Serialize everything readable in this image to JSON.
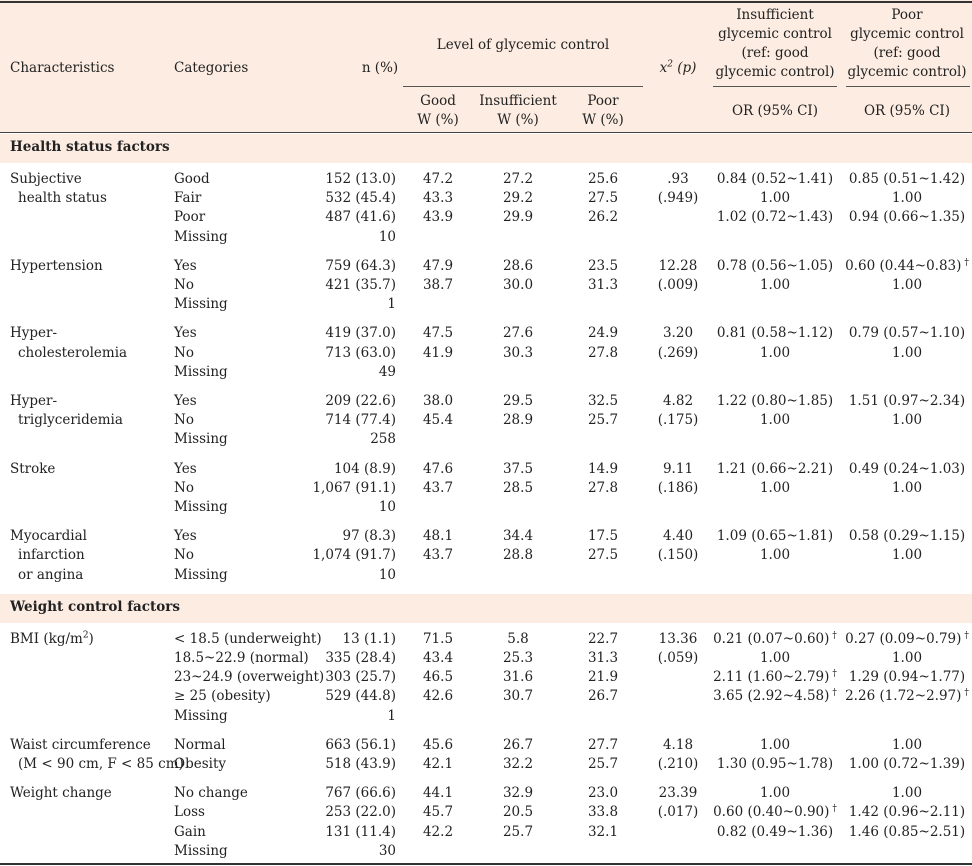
{
  "header": {
    "characteristics": "Characteristics",
    "categories": "Categories",
    "n": "n (%)",
    "level": "Level of glycemic control",
    "chi": "x",
    "chi_sup": "2",
    "chi_p": "(p)",
    "insufficient_title": [
      "Insufficient",
      "glycemic control",
      "(ref: good",
      "glycemic control)"
    ],
    "poor_title": [
      "Poor",
      "glycemic control",
      "(ref: good",
      "glycemic control)"
    ],
    "good_sub": [
      "Good",
      "W (%)"
    ],
    "insuff_sub": [
      "Insufficient",
      "W (%)"
    ],
    "poor_sub": [
      "Poor",
      "W (%)"
    ],
    "or_insuff": "OR (95% CI)",
    "or_poor": "OR (95% CI)"
  },
  "sections": [
    {
      "title": "Health status factors",
      "groups": [
        {
          "label": [
            "Subjective",
            "  health status"
          ],
          "rows": [
            {
              "cat": "Good",
              "n": "152 (13.0)",
              "good": "47.2",
              "insuff": "27.2",
              "poor": "25.6",
              "chi": ".93",
              "or1": "0.84 (0.52~1.41)",
              "or2": "0.85 (0.51~1.42)"
            },
            {
              "cat": "Fair",
              "n": "532 (45.4)",
              "good": "43.3",
              "insuff": "29.2",
              "poor": "27.5",
              "chi": "(.949)",
              "or1": "1.00",
              "or2": "1.00"
            },
            {
              "cat": "Poor",
              "n": "487 (41.6)",
              "good": "43.9",
              "insuff": "29.9",
              "poor": "26.2",
              "chi": "",
              "or1": "1.02 (0.72~1.43)",
              "or2": "0.94 (0.66~1.35)"
            },
            {
              "cat": "Missing",
              "n": "10",
              "good": "",
              "insuff": "",
              "poor": "",
              "chi": "",
              "or1": "",
              "or2": ""
            }
          ]
        },
        {
          "label": [
            "Hypertension"
          ],
          "rows": [
            {
              "cat": "Yes",
              "n": "759 (64.3)",
              "good": "47.9",
              "insuff": "28.6",
              "poor": "23.5",
              "chi": "12.28",
              "or1": "0.78 (0.56~1.05)",
              "or2": "0.60 (0.44~0.83)",
              "dag2": "†"
            },
            {
              "cat": "No",
              "n": "421 (35.7)",
              "good": "38.7",
              "insuff": "30.0",
              "poor": "31.3",
              "chi": "(.009)",
              "or1": "1.00",
              "or2": "1.00"
            },
            {
              "cat": "Missing",
              "n": "1",
              "good": "",
              "insuff": "",
              "poor": "",
              "chi": "",
              "or1": "",
              "or2": ""
            }
          ]
        },
        {
          "label": [
            "Hyper-",
            "  cholesterolemia"
          ],
          "rows": [
            {
              "cat": "Yes",
              "n": "419 (37.0)",
              "good": "47.5",
              "insuff": "27.6",
              "poor": "24.9",
              "chi": "3.20",
              "or1": "0.81 (0.58~1.12)",
              "or2": "0.79 (0.57~1.10)"
            },
            {
              "cat": "No",
              "n": "713 (63.0)",
              "good": "41.9",
              "insuff": "30.3",
              "poor": "27.8",
              "chi": "(.269)",
              "or1": "1.00",
              "or2": "1.00"
            },
            {
              "cat": "Missing",
              "n": "49",
              "good": "",
              "insuff": "",
              "poor": "",
              "chi": "",
              "or1": "",
              "or2": ""
            }
          ]
        },
        {
          "label": [
            "Hyper-",
            "  triglyceridemia"
          ],
          "rows": [
            {
              "cat": "Yes",
              "n": "209 (22.6)",
              "good": "38.0",
              "insuff": "29.5",
              "poor": "32.5",
              "chi": "4.82",
              "or1": "1.22 (0.80~1.85)",
              "or2": "1.51 (0.97~2.34)"
            },
            {
              "cat": "No",
              "n": "714 (77.4)",
              "good": "45.4",
              "insuff": "28.9",
              "poor": "25.7",
              "chi": "(.175)",
              "or1": "1.00",
              "or2": "1.00"
            },
            {
              "cat": "Missing",
              "n": "258",
              "good": "",
              "insuff": "",
              "poor": "",
              "chi": "",
              "or1": "",
              "or2": ""
            }
          ]
        },
        {
          "label": [
            "Stroke"
          ],
          "rows": [
            {
              "cat": "Yes",
              "n": "104 (8.9)",
              "good": "47.6",
              "insuff": "37.5",
              "poor": "14.9",
              "chi": "9.11",
              "or1": "1.21 (0.66~2.21)",
              "or2": "0.49 (0.24~1.03)"
            },
            {
              "cat": "No",
              "n": "1,067 (91.1)",
              "good": "43.7",
              "insuff": "28.5",
              "poor": "27.8",
              "chi": "(.186)",
              "or1": "1.00",
              "or2": "1.00"
            },
            {
              "cat": "Missing",
              "n": "10",
              "good": "",
              "insuff": "",
              "poor": "",
              "chi": "",
              "or1": "",
              "or2": ""
            }
          ]
        },
        {
          "label": [
            "Myocardial",
            "  infarction",
            "  or angina"
          ],
          "rows": [
            {
              "cat": "Yes",
              "n": "97 (8.3)",
              "good": "48.1",
              "insuff": "34.4",
              "poor": "17.5",
              "chi": "4.40",
              "or1": "1.09 (0.65~1.81)",
              "or2": "0.58 (0.29~1.15)"
            },
            {
              "cat": "No",
              "n": "1,074 (91.7)",
              "good": "43.7",
              "insuff": "28.8",
              "poor": "27.5",
              "chi": "(.150)",
              "or1": "1.00",
              "or2": "1.00"
            },
            {
              "cat": "Missing",
              "n": "10",
              "good": "",
              "insuff": "",
              "poor": "",
              "chi": "",
              "or1": "",
              "or2": ""
            }
          ]
        }
      ]
    },
    {
      "title": "Weight control factors",
      "groups": [
        {
          "label": [
            "BMI (kg/m",
            "2",
            ")"
          ],
          "bmi": true,
          "rows": [
            {
              "cat": "< 18.5 (underweight)",
              "n": "13 (1.1)",
              "good": "71.5",
              "insuff": "5.8",
              "poor": "22.7",
              "chi": "13.36",
              "or1": "0.21 (0.07~0.60)",
              "dag1": "†",
              "or2": "0.27 (0.09~0.79)",
              "dag2": "†"
            },
            {
              "cat": "18.5~22.9 (normal)",
              "n": "335 (28.4)",
              "good": "43.4",
              "insuff": "25.3",
              "poor": "31.3",
              "chi": "(.059)",
              "or1": "1.00",
              "or2": "1.00"
            },
            {
              "cat": "23~24.9 (overweight)",
              "n": "303 (25.7)",
              "good": "46.5",
              "insuff": "31.6",
              "poor": "21.9",
              "chi": "",
              "or1": "2.11 (1.60~2.79)",
              "dag1": "†",
              "or2": "1.29 (0.94~1.77)"
            },
            {
              "cat": "≥ 25 (obesity)",
              "n": "529 (44.8)",
              "good": "42.6",
              "insuff": "30.7",
              "poor": "26.7",
              "chi": "",
              "or1": "3.65 (2.92~4.58)",
              "dag1": "†",
              "or2": "2.26 (1.72~2.97)",
              "dag2": "†"
            },
            {
              "cat": "Missing",
              "n": "1",
              "good": "",
              "insuff": "",
              "poor": "",
              "chi": "",
              "or1": "",
              "or2": ""
            }
          ]
        },
        {
          "label": [
            "Waist circumference",
            "  (M < 90 cm, F < 85 cm)"
          ],
          "rows": [
            {
              "cat": "Normal",
              "n": "663 (56.1)",
              "good": "45.6",
              "insuff": "26.7",
              "poor": "27.7",
              "chi": "4.18",
              "or1": "1.00",
              "or2": "1.00"
            },
            {
              "cat": "Obesity",
              "n": "518 (43.9)",
              "good": "42.1",
              "insuff": "32.2",
              "poor": "25.7",
              "chi": "(.210)",
              "or1": "1.30 (0.95~1.78)",
              "or2": "1.00 (0.72~1.39)"
            }
          ]
        },
        {
          "label": [
            "Weight change"
          ],
          "rows": [
            {
              "cat": "No  change",
              "n": "767 (66.6)",
              "good": "44.1",
              "insuff": "32.9",
              "poor": "23.0",
              "chi": "23.39",
              "or1": "1.00",
              "or2": "1.00"
            },
            {
              "cat": "Loss",
              "n": "253 (22.0)",
              "good": "45.7",
              "insuff": "20.5",
              "poor": "33.8",
              "chi": "(.017)",
              "or1": "0.60 (0.40~0.90)",
              "dag1": "†",
              "or2": "1.42 (0.96~2.11)"
            },
            {
              "cat": "Gain",
              "n": "131 (11.4)",
              "good": "42.2",
              "insuff": "25.7",
              "poor": "32.1",
              "chi": "",
              "or1": "0.82 (0.49~1.36)",
              "or2": "1.46 (0.85~2.51)"
            },
            {
              "cat": "Missing",
              "n": "30",
              "good": "",
              "insuff": "",
              "poor": "",
              "chi": "",
              "or1": "",
              "or2": ""
            }
          ]
        }
      ]
    }
  ]
}
